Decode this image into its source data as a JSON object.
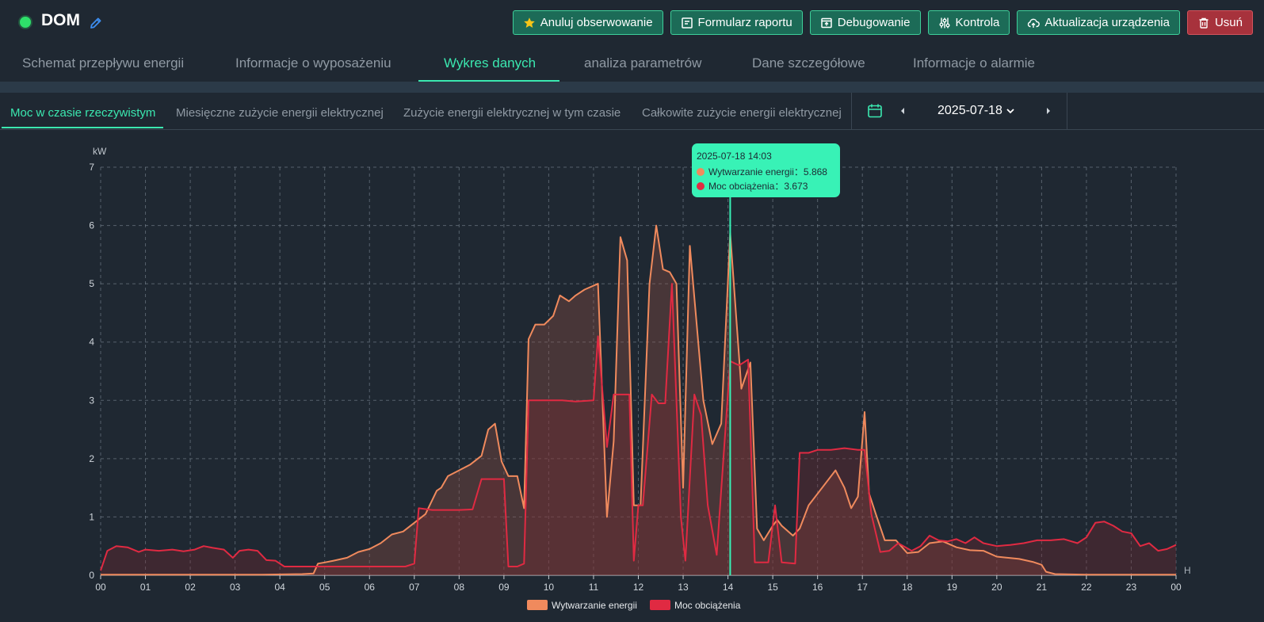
{
  "device": {
    "title": "DOM",
    "status": "online"
  },
  "actions": [
    {
      "label": "Anuluj obserwowanie",
      "icon": "star-icon"
    },
    {
      "label": "Formularz raportu",
      "icon": "report-icon"
    },
    {
      "label": "Debugowanie",
      "icon": "debug-icon"
    },
    {
      "label": "Kontrola",
      "icon": "sliders-icon"
    },
    {
      "label": "Aktualizacja urządzenia",
      "icon": "cloud-upload-icon"
    },
    {
      "label": "Usuń",
      "icon": "trash-icon"
    }
  ],
  "main_tabs": [
    {
      "label": "Schemat przepływu energii"
    },
    {
      "label": "Informacje o wyposażeniu"
    },
    {
      "label": "Wykres danych",
      "active": true
    },
    {
      "label": "analiza parametrów"
    },
    {
      "label": "Dane szczegółowe"
    },
    {
      "label": "Informacje o alarmie"
    }
  ],
  "sub_tabs": [
    {
      "label": "Moc w czasie rzeczywistym",
      "active": true
    },
    {
      "label": "Miesięczne zużycie energii elektrycznej"
    },
    {
      "label": "Zużycie energii elektrycznej w tym czasie"
    },
    {
      "label": "Całkowite zużycie energii elektrycznej"
    }
  ],
  "date_picker": {
    "value": "2025-07-18"
  },
  "tooltip": {
    "time": "2025-07-18 14:03",
    "rows": [
      {
        "label": "Wytwarzanie energii：5.868",
        "color": "#f08a5d"
      },
      {
        "label": "Moc obciążenia：3.673",
        "color": "#e02a42"
      }
    ]
  },
  "colors": {
    "accent": "#3be8b0",
    "generation": "#f08a5d",
    "load": "#e02a42"
  },
  "chart_data": {
    "type": "area",
    "ylabel": "kW",
    "xlabel": "H",
    "ylim": [
      0,
      7
    ],
    "yticks": [
      "0",
      "1",
      "2",
      "3",
      "4",
      "5",
      "6",
      "7"
    ],
    "xticks": [
      "00",
      "01",
      "02",
      "03",
      "04",
      "05",
      "06",
      "07",
      "08",
      "09",
      "10",
      "11",
      "12",
      "13",
      "14",
      "15",
      "16",
      "17",
      "18",
      "19",
      "20",
      "21",
      "22",
      "23",
      "00"
    ],
    "xrange_hours": [
      0,
      24
    ],
    "grid": true,
    "legend_position": "bottom-center",
    "cursor_hour": 14.05,
    "series": [
      {
        "name": "Wytwarzanie energii",
        "color": "#f08a5d",
        "points": [
          [
            0,
            0.01
          ],
          [
            1,
            0.01
          ],
          [
            2,
            0.01
          ],
          [
            3,
            0.01
          ],
          [
            3.6,
            0.01
          ],
          [
            4.5,
            0.02
          ],
          [
            4.75,
            0.03
          ],
          [
            4.85,
            0.2
          ],
          [
            5,
            0.22
          ],
          [
            5.2,
            0.25
          ],
          [
            5.5,
            0.3
          ],
          [
            5.75,
            0.4
          ],
          [
            6,
            0.45
          ],
          [
            6.25,
            0.55
          ],
          [
            6.5,
            0.7
          ],
          [
            6.75,
            0.75
          ],
          [
            7,
            0.9
          ],
          [
            7.25,
            1.05
          ],
          [
            7.5,
            1.45
          ],
          [
            7.6,
            1.5
          ],
          [
            7.75,
            1.7
          ],
          [
            8,
            1.8
          ],
          [
            8.25,
            1.9
          ],
          [
            8.5,
            2.05
          ],
          [
            8.65,
            2.5
          ],
          [
            8.8,
            2.6
          ],
          [
            8.95,
            1.95
          ],
          [
            9.1,
            1.7
          ],
          [
            9.3,
            1.7
          ],
          [
            9.45,
            1.15
          ],
          [
            9.55,
            4.05
          ],
          [
            9.7,
            4.3
          ],
          [
            9.9,
            4.3
          ],
          [
            10.1,
            4.45
          ],
          [
            10.25,
            4.8
          ],
          [
            10.45,
            4.7
          ],
          [
            10.6,
            4.8
          ],
          [
            10.8,
            4.9
          ],
          [
            11.1,
            5.0
          ],
          [
            11.3,
            1.0
          ],
          [
            11.45,
            2.3
          ],
          [
            11.6,
            5.8
          ],
          [
            11.75,
            5.4
          ],
          [
            11.9,
            1.2
          ],
          [
            12.05,
            1.2
          ],
          [
            12.25,
            5.0
          ],
          [
            12.4,
            6.0
          ],
          [
            12.55,
            5.25
          ],
          [
            12.7,
            5.2
          ],
          [
            12.85,
            5.0
          ],
          [
            13.0,
            1.5
          ],
          [
            13.15,
            5.65
          ],
          [
            13.45,
            3.0
          ],
          [
            13.65,
            2.25
          ],
          [
            13.85,
            2.6
          ],
          [
            14.05,
            5.868
          ],
          [
            14.3,
            3.2
          ],
          [
            14.5,
            3.65
          ],
          [
            14.65,
            0.8
          ],
          [
            14.8,
            0.6
          ],
          [
            15.0,
            0.85
          ],
          [
            15.1,
            0.95
          ],
          [
            15.2,
            0.85
          ],
          [
            15.45,
            0.68
          ],
          [
            15.6,
            0.8
          ],
          [
            15.8,
            1.2
          ],
          [
            16.2,
            1.6
          ],
          [
            16.4,
            1.8
          ],
          [
            16.6,
            1.5
          ],
          [
            16.75,
            1.15
          ],
          [
            16.9,
            1.35
          ],
          [
            17.05,
            2.8
          ],
          [
            17.15,
            1.4
          ],
          [
            17.3,
            1.05
          ],
          [
            17.5,
            0.6
          ],
          [
            17.75,
            0.6
          ],
          [
            18.0,
            0.38
          ],
          [
            18.25,
            0.4
          ],
          [
            18.5,
            0.55
          ],
          [
            18.8,
            0.58
          ],
          [
            19.1,
            0.48
          ],
          [
            19.4,
            0.43
          ],
          [
            19.7,
            0.42
          ],
          [
            20.0,
            0.32
          ],
          [
            20.5,
            0.28
          ],
          [
            20.8,
            0.23
          ],
          [
            21.0,
            0.18
          ],
          [
            21.1,
            0.06
          ],
          [
            21.3,
            0.02
          ],
          [
            22,
            0.01
          ],
          [
            23,
            0.01
          ],
          [
            24,
            0.01
          ]
        ]
      },
      {
        "name": "Moc obciążenia",
        "color": "#e02a42",
        "points": [
          [
            0,
            0.08
          ],
          [
            0.15,
            0.42
          ],
          [
            0.35,
            0.5
          ],
          [
            0.6,
            0.48
          ],
          [
            0.85,
            0.4
          ],
          [
            1.0,
            0.44
          ],
          [
            1.3,
            0.42
          ],
          [
            1.6,
            0.44
          ],
          [
            1.85,
            0.41
          ],
          [
            2.1,
            0.44
          ],
          [
            2.3,
            0.5
          ],
          [
            2.5,
            0.47
          ],
          [
            2.75,
            0.44
          ],
          [
            2.95,
            0.3
          ],
          [
            3.1,
            0.42
          ],
          [
            3.3,
            0.44
          ],
          [
            3.5,
            0.42
          ],
          [
            3.7,
            0.26
          ],
          [
            3.9,
            0.25
          ],
          [
            4.1,
            0.15
          ],
          [
            4.4,
            0.15
          ],
          [
            4.7,
            0.15
          ],
          [
            5.0,
            0.15
          ],
          [
            5.3,
            0.15
          ],
          [
            5.6,
            0.15
          ],
          [
            5.9,
            0.15
          ],
          [
            6.2,
            0.15
          ],
          [
            6.5,
            0.15
          ],
          [
            6.8,
            0.15
          ],
          [
            7.0,
            0.2
          ],
          [
            7.1,
            1.15
          ],
          [
            7.4,
            1.12
          ],
          [
            7.7,
            1.12
          ],
          [
            8.0,
            1.12
          ],
          [
            8.3,
            1.13
          ],
          [
            8.5,
            1.65
          ],
          [
            8.8,
            1.65
          ],
          [
            9.0,
            1.65
          ],
          [
            9.1,
            0.15
          ],
          [
            9.3,
            0.15
          ],
          [
            9.45,
            0.2
          ],
          [
            9.55,
            3.0
          ],
          [
            9.9,
            3.0
          ],
          [
            10.3,
            3.0
          ],
          [
            10.6,
            2.98
          ],
          [
            11.0,
            3.0
          ],
          [
            11.1,
            4.1
          ],
          [
            11.3,
            2.2
          ],
          [
            11.45,
            3.1
          ],
          [
            11.7,
            3.1
          ],
          [
            11.8,
            3.1
          ],
          [
            11.9,
            0.25
          ],
          [
            12.0,
            1.2
          ],
          [
            12.1,
            1.2
          ],
          [
            12.3,
            3.1
          ],
          [
            12.45,
            2.95
          ],
          [
            12.6,
            2.95
          ],
          [
            12.75,
            5.0
          ],
          [
            12.95,
            1.0
          ],
          [
            13.05,
            0.25
          ],
          [
            13.25,
            3.1
          ],
          [
            13.4,
            2.75
          ],
          [
            13.55,
            1.2
          ],
          [
            13.75,
            0.35
          ],
          [
            14.05,
            3.673
          ],
          [
            14.25,
            3.6
          ],
          [
            14.45,
            3.7
          ],
          [
            14.6,
            0.22
          ],
          [
            14.9,
            0.22
          ],
          [
            15.05,
            1.2
          ],
          [
            15.2,
            0.22
          ],
          [
            15.5,
            0.2
          ],
          [
            15.6,
            2.1
          ],
          [
            15.8,
            2.1
          ],
          [
            16.0,
            2.15
          ],
          [
            16.3,
            2.15
          ],
          [
            16.6,
            2.18
          ],
          [
            16.9,
            2.15
          ],
          [
            17.05,
            2.15
          ],
          [
            17.2,
            1.05
          ],
          [
            17.4,
            0.4
          ],
          [
            17.6,
            0.42
          ],
          [
            17.8,
            0.55
          ],
          [
            18.1,
            0.42
          ],
          [
            18.3,
            0.5
          ],
          [
            18.5,
            0.68
          ],
          [
            18.7,
            0.6
          ],
          [
            18.9,
            0.58
          ],
          [
            19.1,
            0.62
          ],
          [
            19.3,
            0.55
          ],
          [
            19.5,
            0.65
          ],
          [
            19.7,
            0.55
          ],
          [
            20.0,
            0.5
          ],
          [
            20.3,
            0.52
          ],
          [
            20.6,
            0.55
          ],
          [
            20.9,
            0.6
          ],
          [
            21.2,
            0.6
          ],
          [
            21.5,
            0.62
          ],
          [
            21.8,
            0.55
          ],
          [
            22.0,
            0.65
          ],
          [
            22.2,
            0.9
          ],
          [
            22.4,
            0.92
          ],
          [
            22.6,
            0.85
          ],
          [
            22.8,
            0.75
          ],
          [
            23.0,
            0.72
          ],
          [
            23.2,
            0.5
          ],
          [
            23.4,
            0.55
          ],
          [
            23.6,
            0.42
          ],
          [
            23.8,
            0.45
          ],
          [
            24.0,
            0.52
          ]
        ]
      }
    ]
  }
}
